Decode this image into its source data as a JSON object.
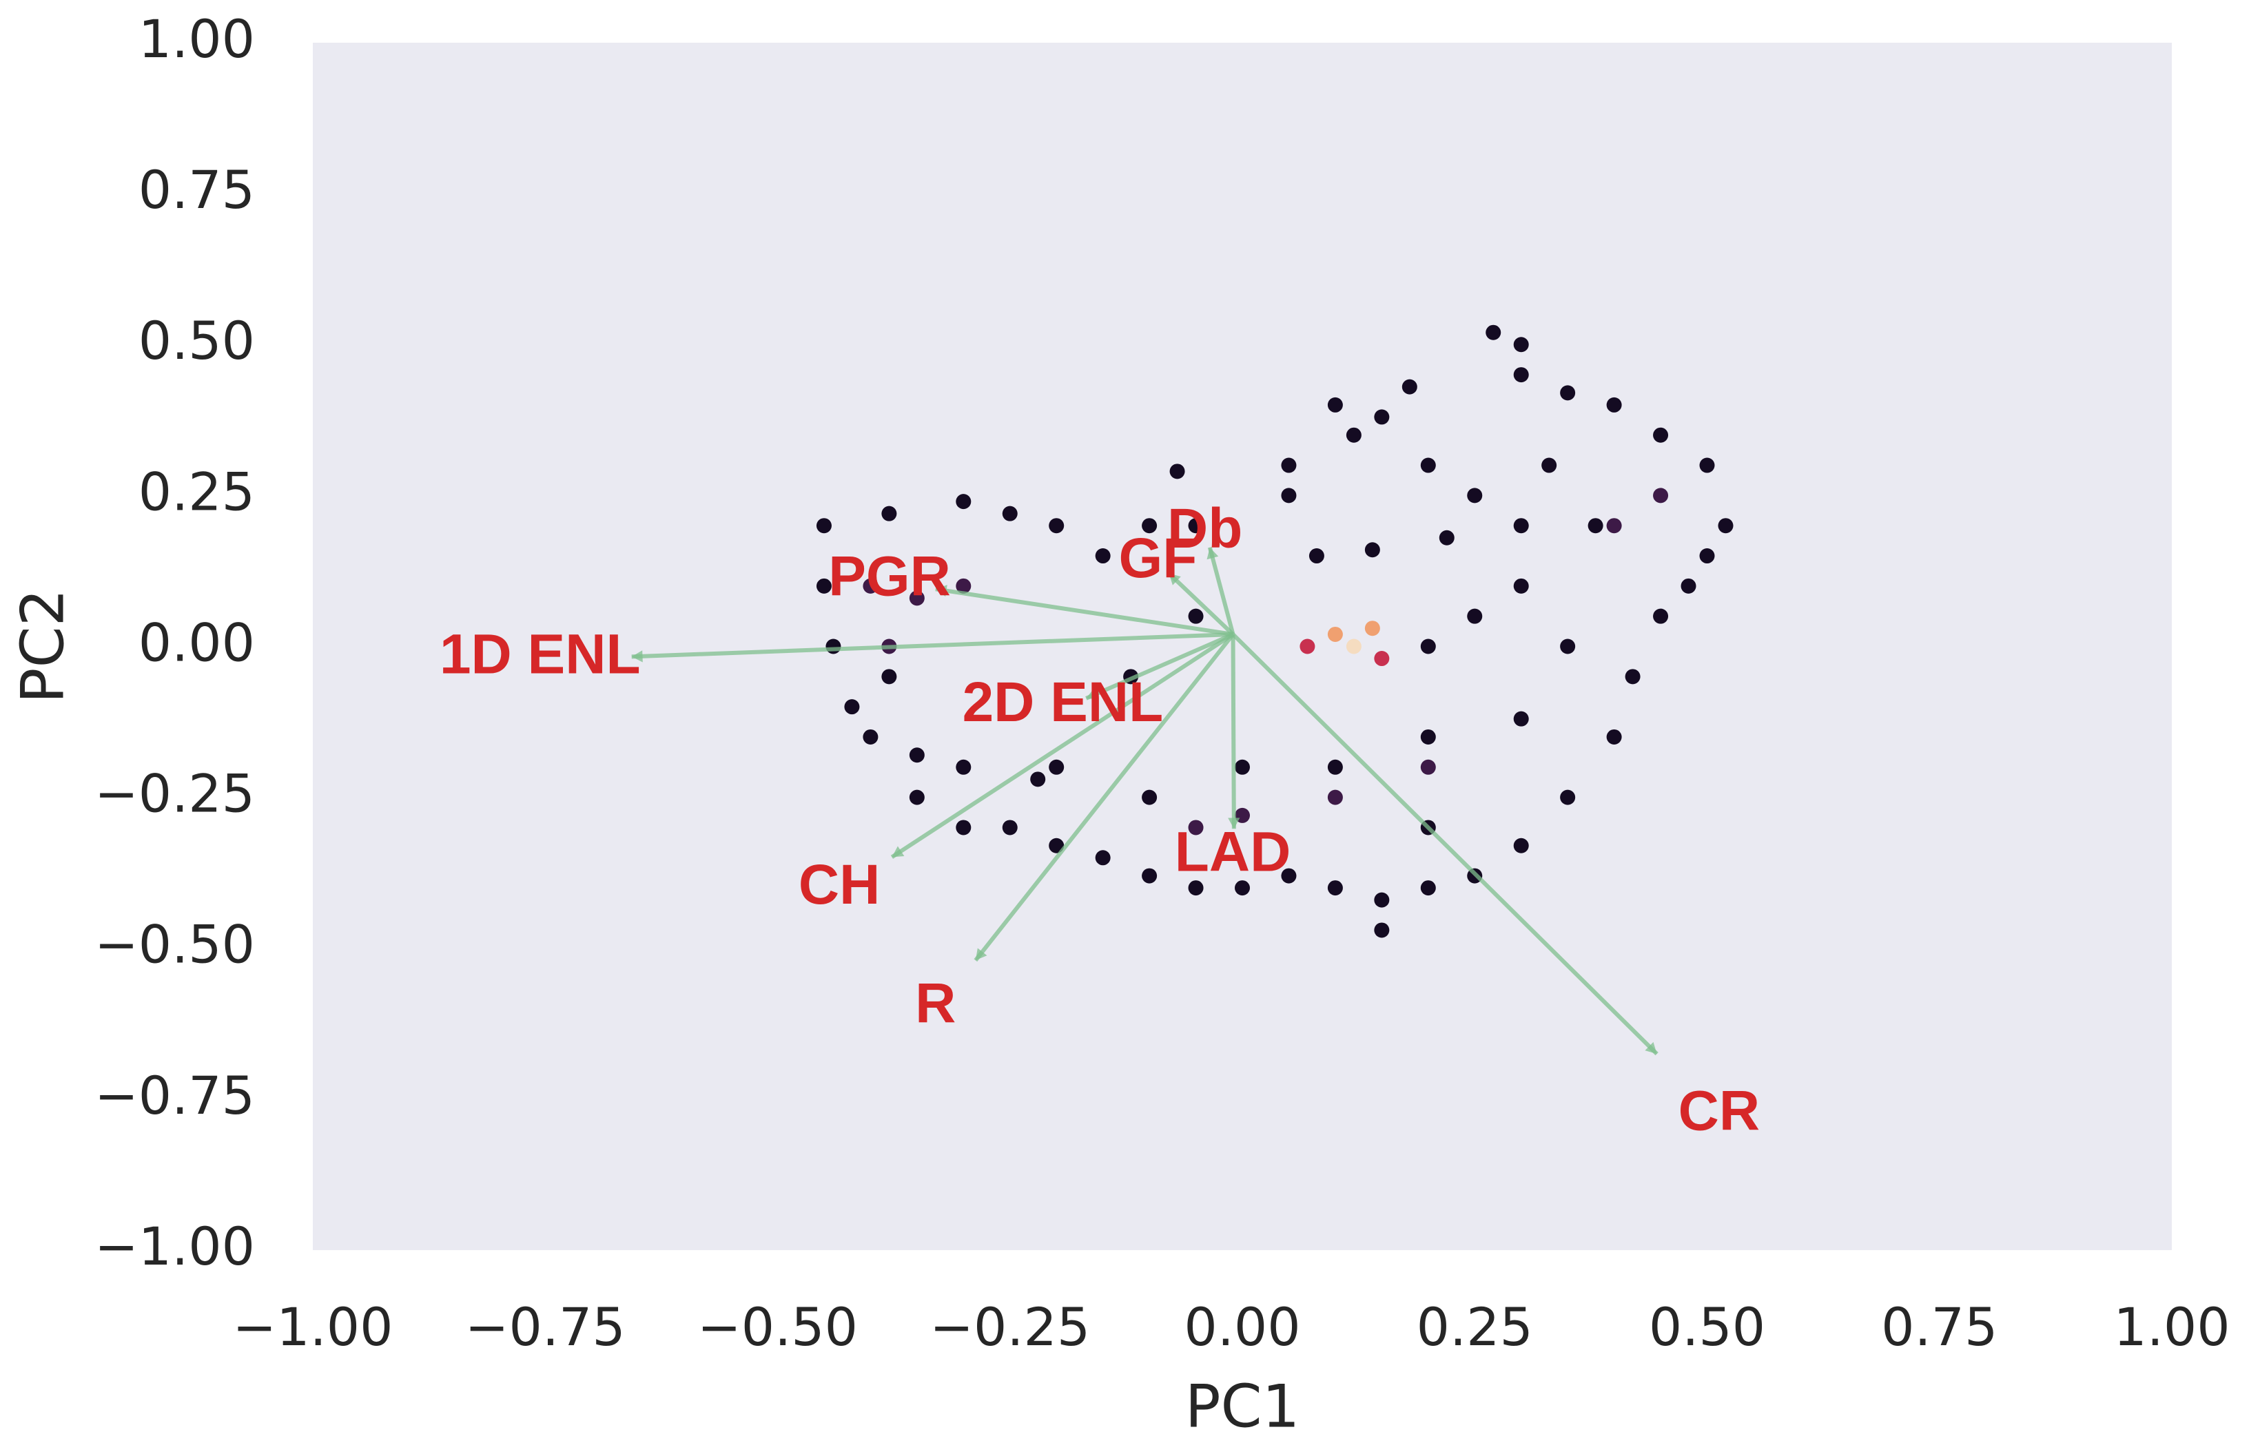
{
  "chart_data": {
    "type": "scatter",
    "xlabel": "PC1",
    "ylabel": "PC2",
    "xlim": [
      -1,
      1
    ],
    "ylim": [
      -1,
      1
    ],
    "xticks": [
      {
        "value": -1,
        "label": "−1.00"
      },
      {
        "value": -0.75,
        "label": "−0.75"
      },
      {
        "value": -0.5,
        "label": "−0.50"
      },
      {
        "value": -0.25,
        "label": "−0.25"
      },
      {
        "value": 0,
        "label": "0.00"
      },
      {
        "value": 0.25,
        "label": "0.25"
      },
      {
        "value": 0.5,
        "label": "0.50"
      },
      {
        "value": 0.75,
        "label": "0.75"
      },
      {
        "value": 1,
        "label": "1.00"
      }
    ],
    "yticks": [
      {
        "value": 1,
        "label": "1.00"
      },
      {
        "value": 0.75,
        "label": "0.75"
      },
      {
        "value": 0.5,
        "label": "0.50"
      },
      {
        "value": 0.25,
        "label": "0.25"
      },
      {
        "value": 0,
        "label": "0.00"
      },
      {
        "value": -0.25,
        "label": "−0.25"
      },
      {
        "value": -0.5,
        "label": "−0.50"
      },
      {
        "value": -0.75,
        "label": "−0.75"
      },
      {
        "value": -1,
        "label": "−1.00"
      }
    ],
    "grid": false,
    "background": "#eaeaf2",
    "series": [
      {
        "color": "#140b22",
        "x": [
          -0.45,
          -0.45,
          -0.44,
          -0.42,
          -0.4,
          -0.38,
          -0.35,
          -0.3,
          -0.3,
          -0.25,
          -0.22,
          -0.2,
          -0.15,
          -0.1,
          -0.05,
          -0.05,
          0.05,
          0.08,
          -0.12,
          -0.38,
          -0.35,
          -0.3,
          -0.25,
          -0.2,
          -0.15,
          -0.1,
          -0.05,
          0.0,
          0.05,
          0.1,
          0.15,
          0.2,
          0.25,
          0.3,
          0.35,
          -0.2,
          -0.1,
          0.0,
          0.1,
          0.2,
          0.3,
          0.2,
          0.15,
          0.4,
          0.42,
          0.45,
          0.48,
          0.5,
          0.52,
          0.5,
          0.45,
          0.4,
          0.35,
          0.3,
          0.27,
          0.3,
          0.33,
          0.3,
          0.3,
          0.25,
          0.35,
          0.2,
          0.38,
          0.1,
          0.12,
          0.15,
          0.18,
          0.2,
          0.25,
          0.22,
          0.14,
          0.05,
          -0.07
        ],
        "y": [
          0.2,
          0.1,
          0.0,
          -0.1,
          -0.15,
          0.22,
          -0.18,
          0.24,
          -0.2,
          0.22,
          -0.22,
          0.2,
          0.15,
          0.2,
          0.2,
          0.05,
          0.25,
          0.15,
          -0.05,
          -0.05,
          -0.25,
          -0.3,
          -0.3,
          -0.33,
          -0.35,
          -0.38,
          -0.4,
          -0.4,
          -0.38,
          -0.4,
          -0.42,
          -0.4,
          -0.38,
          -0.33,
          -0.25,
          -0.2,
          -0.25,
          -0.2,
          -0.2,
          -0.15,
          -0.12,
          -0.3,
          -0.47,
          -0.15,
          -0.05,
          0.05,
          0.1,
          0.15,
          0.2,
          0.3,
          0.35,
          0.4,
          0.42,
          0.45,
          0.52,
          0.5,
          0.3,
          0.2,
          0.1,
          0.05,
          0.0,
          0.0,
          0.2,
          0.4,
          0.35,
          0.38,
          0.43,
          0.3,
          0.25,
          0.18,
          0.16,
          0.3,
          0.29
        ]
      },
      {
        "color": "#3d1a47",
        "x": [
          -0.4,
          -0.35,
          -0.3,
          -0.38,
          0.0,
          0.1,
          0.2,
          0.45,
          0.4,
          -0.05
        ],
        "y": [
          0.1,
          0.08,
          0.1,
          0.0,
          -0.28,
          -0.25,
          -0.2,
          0.25,
          0.2,
          -0.3
        ]
      },
      {
        "color": "#c8304f",
        "x": [
          0.07,
          0.15
        ],
        "y": [
          0.0,
          -0.02
        ]
      },
      {
        "color": "#f0a070",
        "x": [
          0.1,
          0.14
        ],
        "y": [
          0.02,
          0.03
        ]
      },
      {
        "color": "#f5dcc0",
        "x": [
          0.12
        ],
        "y": [
          0.0
        ]
      }
    ],
    "arrow_origin": [
      -0.01,
      0.02
    ],
    "arrow_color": "#7fbf8e",
    "label_color": "#d62728",
    "loadings": [
      {
        "label": "PGR",
        "x": -0.33,
        "y": 0.095
      },
      {
        "label": "1D ENL",
        "x": -0.657,
        "y": -0.017
      },
      {
        "label": "Db",
        "x": -0.035,
        "y": 0.164
      },
      {
        "label": "GF",
        "x": -0.079,
        "y": 0.121
      },
      {
        "label": "2D ENL",
        "x": -0.168,
        "y": -0.086
      },
      {
        "label": "CH",
        "x": -0.377,
        "y": -0.349
      },
      {
        "label": "R",
        "x": -0.287,
        "y": -0.52
      },
      {
        "label": "LAD",
        "x": -0.009,
        "y": -0.302
      },
      {
        "label": "CR",
        "x": 0.446,
        "y": -0.675
      }
    ]
  }
}
